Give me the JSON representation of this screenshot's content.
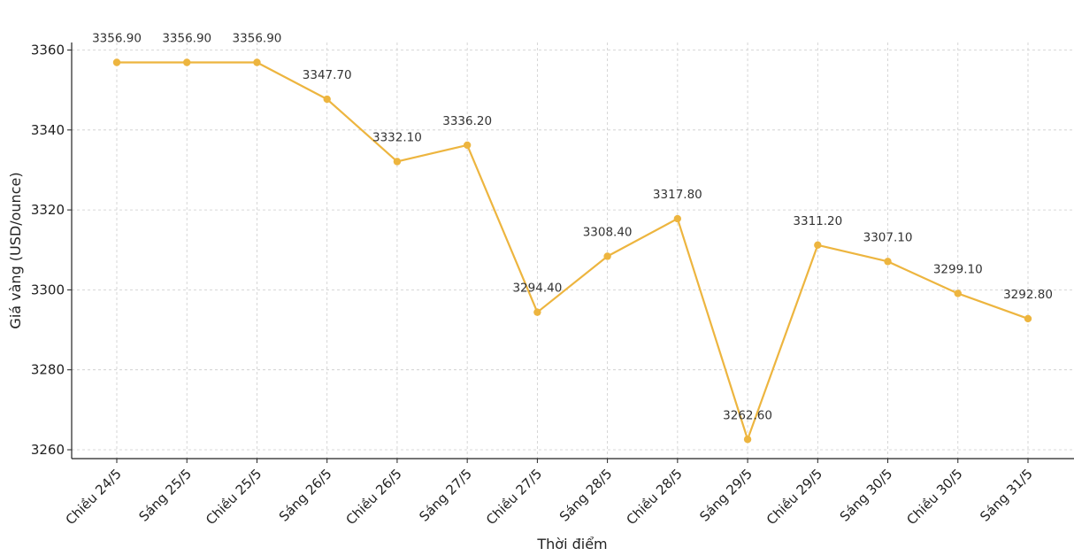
{
  "chart_data": {
    "type": "line",
    "title": "",
    "xlabel": "Thời điểm",
    "ylabel": "Giá vàng (USD/ounce)",
    "categories": [
      "Chiều 24/5",
      "Sáng 25/5",
      "Chiều 25/5",
      "Sáng 26/5",
      "Chiều 26/5",
      "Sáng 27/5",
      "Chiều 27/5",
      "Sáng 28/5",
      "Chiều 28/5",
      "Sáng 29/5",
      "Chiều 29/5",
      "Sáng 30/5",
      "Chiều 30/5",
      "Sáng 31/5"
    ],
    "series": [
      {
        "values": [
          3356.9,
          3356.9,
          3356.9,
          3347.7,
          3332.1,
          3336.2,
          3294.4,
          3308.4,
          3317.8,
          3262.6,
          3311.2,
          3307.1,
          3299.1,
          3292.8
        ],
        "labels": [
          "3356.90",
          "3356.90",
          "3356.90",
          "3347.70",
          "3332.10",
          "3336.20",
          "3294.40",
          "3308.40",
          "3317.80",
          "3262.60",
          "3311.20",
          "3307.10",
          "3299.10",
          "3292.80"
        ],
        "color": "#edb53f"
      }
    ],
    "yticks": [
      3260,
      3280,
      3300,
      3320,
      3340,
      3360
    ],
    "ytick_labels": [
      "3260",
      "3280",
      "3300",
      "3320",
      "3340",
      "3360"
    ],
    "ylim": [
      3258,
      3361.5
    ],
    "grid": true,
    "legend": "none"
  }
}
